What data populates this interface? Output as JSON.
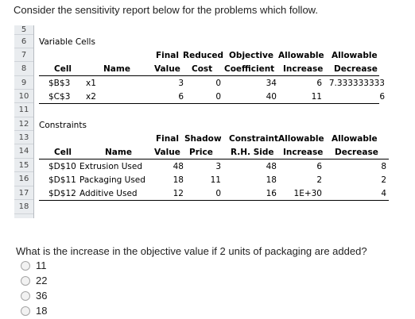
{
  "question_intro": "Consider the sensitivity report below for the problems which follow.",
  "sheet": {
    "row_numbers": [
      "5",
      "6",
      "7",
      "8",
      "9",
      "10",
      "11",
      "12",
      "13",
      "14",
      "15",
      "16",
      "17",
      "18"
    ],
    "variable_cells_title": "Variable Cells",
    "var_headers_top": [
      "Final",
      "Reduced",
      "Objective",
      "Allowable",
      "Allowable"
    ],
    "var_headers_bottom": [
      "Cell",
      "Name",
      "Value",
      "Cost",
      "Coefficient",
      "Increase",
      "Decrease"
    ],
    "var_rows": [
      {
        "cell": "$B$3",
        "name": "x1",
        "value": "3",
        "cost": "0",
        "coef": "34",
        "inc": "6",
        "dec": "7.333333333"
      },
      {
        "cell": "$C$3",
        "name": "x2",
        "value": "6",
        "cost": "0",
        "coef": "40",
        "inc": "11",
        "dec": "6"
      }
    ],
    "constraints_title": "Constraints",
    "con_headers_top": [
      "Final",
      "Shadow",
      "Constraint",
      "Allowable",
      "Allowable"
    ],
    "con_headers_bottom": [
      "Cell",
      "Name",
      "Value",
      "Price",
      "R.H. Side",
      "Increase",
      "Decrease"
    ],
    "con_rows": [
      {
        "cell": "$D$10",
        "name": "Extrusion Used",
        "value": "48",
        "price": "3",
        "rhs": "48",
        "inc": "6",
        "dec": "8"
      },
      {
        "cell": "$D$11",
        "name": "Packaging Used",
        "value": "18",
        "price": "11",
        "rhs": "18",
        "inc": "2",
        "dec": "2"
      },
      {
        "cell": "$D$12",
        "name": "Additive Used",
        "value": "12",
        "price": "0",
        "rhs": "16",
        "inc": "1E+30",
        "dec": "4"
      }
    ]
  },
  "question": "What is the increase in the objective value if 2 units of packaging are added?",
  "options": [
    "11",
    "22",
    "36",
    "18"
  ]
}
